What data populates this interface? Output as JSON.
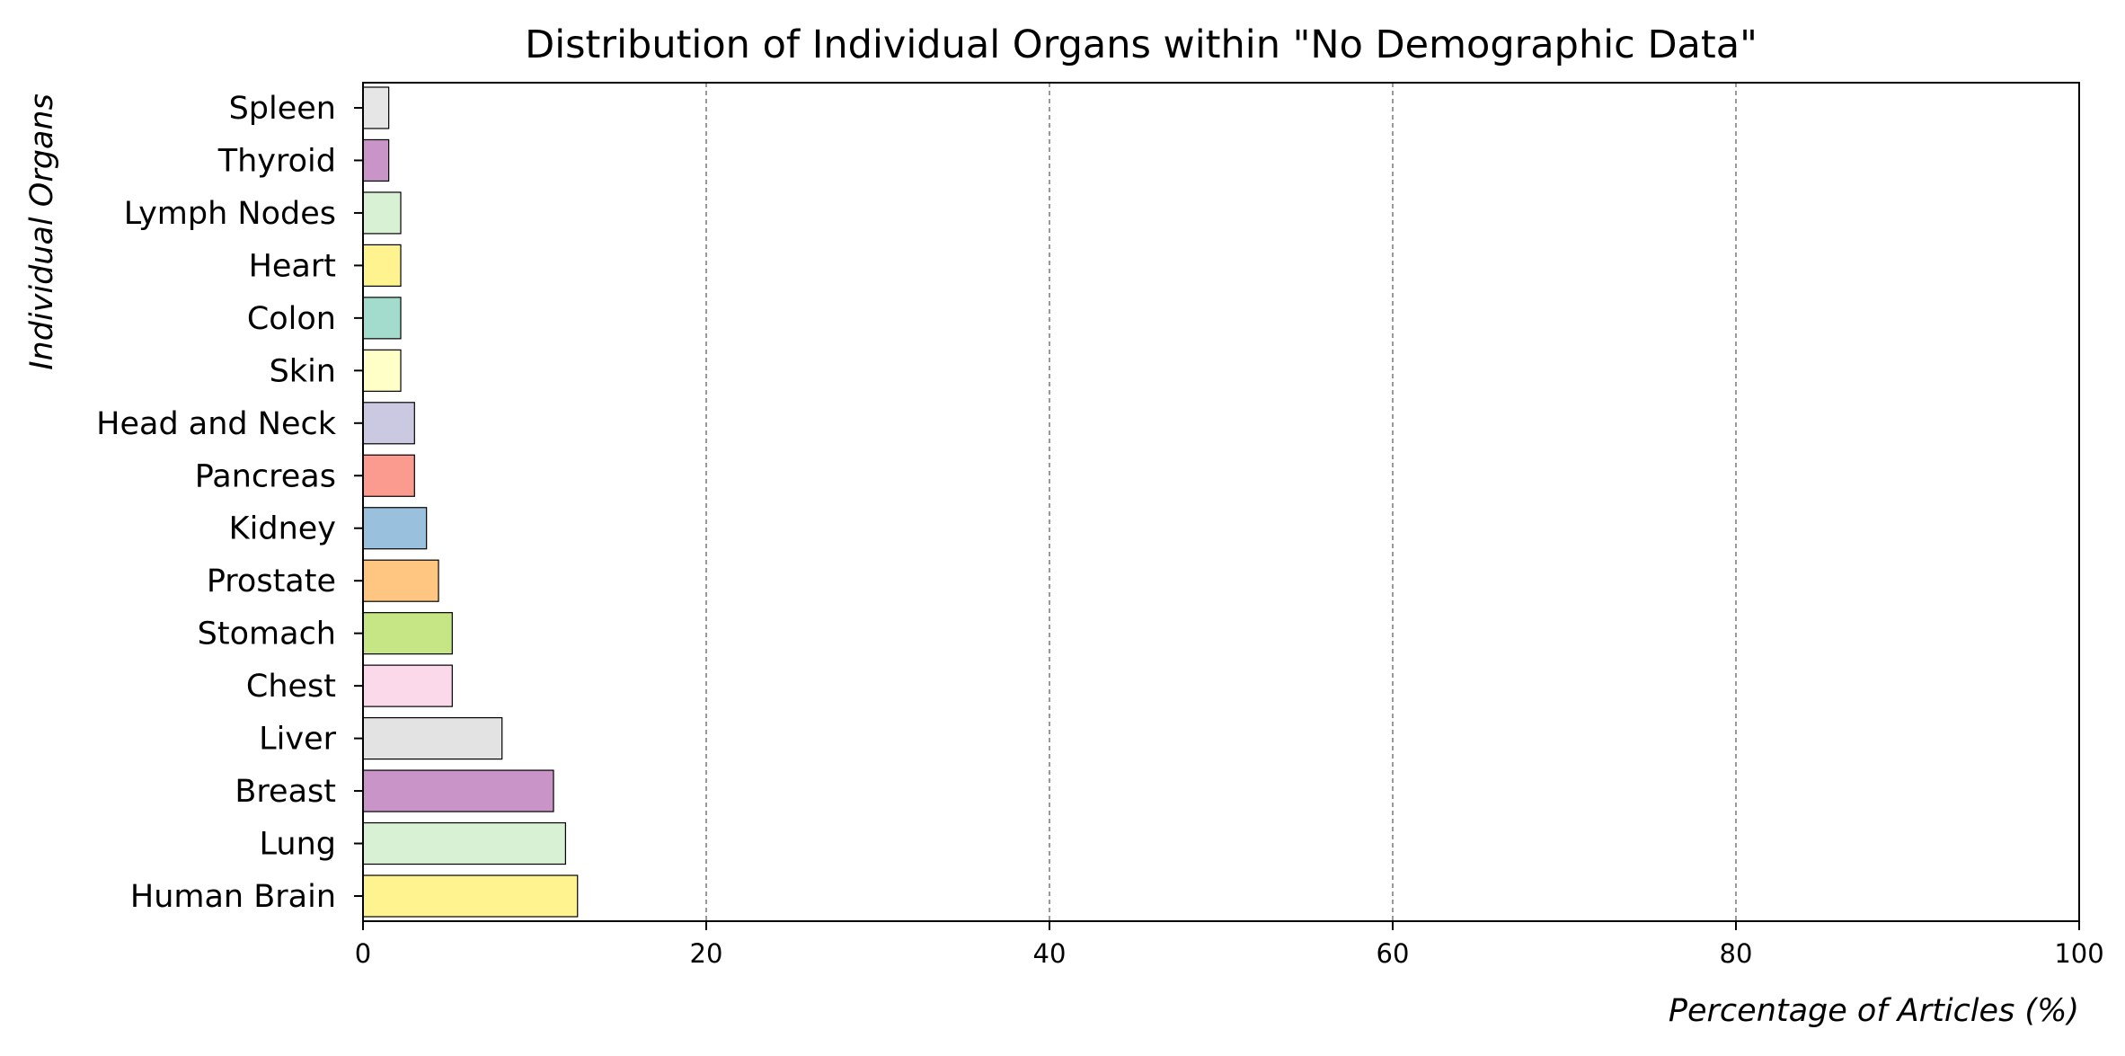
{
  "chart_data": {
    "type": "bar",
    "orientation": "horizontal",
    "title": "Distribution of Individual Organs within \"No Demographic Data\"",
    "xlabel": "Percentage of Articles (%)",
    "ylabel": "Individual Organs",
    "xlim": [
      0,
      100
    ],
    "xticks": [
      0,
      20,
      40,
      60,
      80,
      100
    ],
    "grid": "x-dashed",
    "legend": "none",
    "categories": [
      "Spleen",
      "Thyroid",
      "Lymph Nodes",
      "Heart",
      "Colon",
      "Skin",
      "Head and Neck",
      "Pancreas",
      "Kidney",
      "Prostate",
      "Stomach",
      "Chest",
      "Liver",
      "Breast",
      "Lung",
      "Human Brain"
    ],
    "values": [
      1.5,
      1.5,
      2.2,
      2.2,
      2.2,
      2.2,
      3.0,
      3.0,
      3.7,
      4.4,
      5.2,
      5.2,
      8.1,
      11.1,
      11.8,
      12.5
    ],
    "colors": [
      "#e6e6e6",
      "#c994c7",
      "#d8f0d3",
      "#fff38f",
      "#a3dccc",
      "#ffffc7",
      "#cbc9e2",
      "#fb9a8f",
      "#99c0dc",
      "#fec680",
      "#c6e686",
      "#fbd9eb",
      "#e3e3e3",
      "#c994c7",
      "#d8f0d3",
      "#fff38f"
    ]
  }
}
